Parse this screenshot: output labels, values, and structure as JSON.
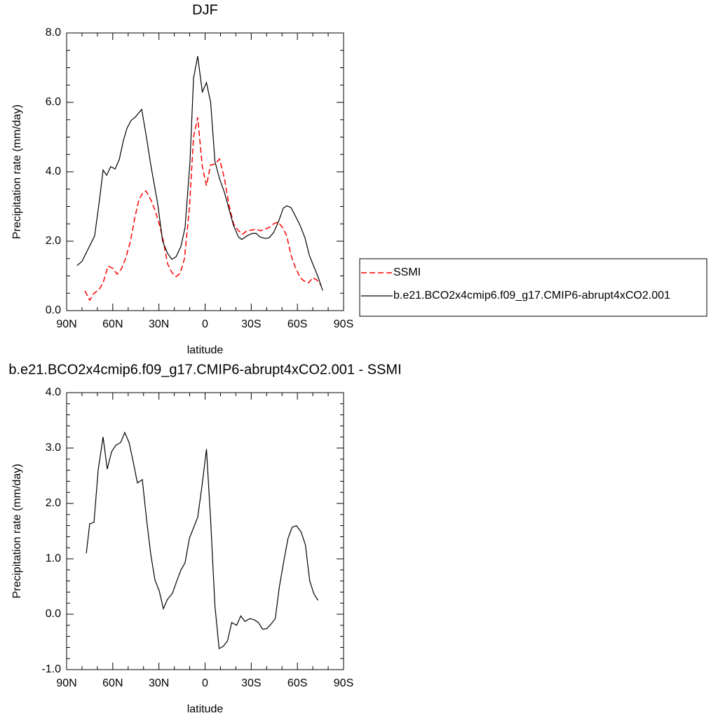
{
  "chart_data": [
    {
      "type": "line",
      "title": "DJF",
      "xlabel": "latitude",
      "ylabel": "Precipitation rate (mm/day)",
      "xlim": [
        90,
        -90
      ],
      "ylim": [
        0,
        8
      ],
      "xticks": [
        {
          "value": 90,
          "label": "90N"
        },
        {
          "value": 60,
          "label": "60N"
        },
        {
          "value": 30,
          "label": "30N"
        },
        0,
        {
          "value": -30,
          "label": "30S"
        },
        {
          "value": -60,
          "label": "60S"
        },
        {
          "value": -90,
          "label": "90S"
        }
      ],
      "yticks": [
        {
          "value": 0,
          "label": "0.0"
        },
        {
          "value": 2,
          "label": "2.0"
        },
        {
          "value": 4,
          "label": "4.0"
        },
        {
          "value": 6,
          "label": "6.0"
        },
        {
          "value": 8,
          "label": "8.0"
        }
      ],
      "legend": "right",
      "series": [
        {
          "name": "SSMI",
          "color": "#ff0000",
          "dash": true,
          "x": [
            78.1,
            75,
            72.2,
            69,
            66.3,
            63.1,
            59.9,
            57.2,
            54.4,
            51.7,
            48.5,
            45.8,
            43,
            40.3,
            38.5,
            35.3,
            32.6,
            29.8,
            27.1,
            24.4,
            21.6,
            18.9,
            16.2,
            13.4,
            10.2,
            7.5,
            4.8,
            1.8,
            -0.9,
            -3.6,
            -6.4,
            -9.4,
            -12.6,
            -15.7,
            -18.5,
            -21.7,
            -24.4,
            -27.1,
            -30.3,
            -33.1,
            -36.3,
            -39,
            -41.7,
            -44.5,
            -47.2,
            -50.4,
            -53.1,
            -55.8,
            -58.6,
            -61.8,
            -64.5,
            -67.3,
            -70,
            -72.7,
            -75.4
          ],
          "values": [
            0.57,
            0.3,
            0.5,
            0.6,
            0.8,
            1.28,
            1.22,
            1.05,
            1.2,
            1.5,
            2.0,
            2.65,
            3.2,
            3.4,
            3.45,
            3.2,
            2.9,
            2.5,
            2.0,
            1.35,
            1.1,
            0.98,
            1.07,
            1.5,
            2.95,
            5.0,
            5.57,
            4.15,
            3.6,
            4.2,
            4.22,
            4.37,
            3.8,
            3.0,
            2.5,
            2.3,
            2.2,
            2.3,
            2.32,
            2.35,
            2.3,
            2.35,
            2.4,
            2.5,
            2.55,
            2.4,
            2.15,
            1.6,
            1.25,
            0.95,
            0.85,
            0.8,
            0.95,
            0.88,
            0.73
          ]
        },
        {
          "name": "b.e21.BCO2x4cmip6.f09_g17.CMIP6-abrupt4xCO2.001",
          "color": "#000000",
          "dash": false,
          "x": [
            83.2,
            80,
            76.3,
            71.8,
            68.6,
            66.3,
            64,
            61.3,
            58.5,
            55.8,
            53.1,
            50.8,
            48.1,
            45.3,
            41.2,
            38.5,
            35.3,
            30.7,
            27.6,
            24.4,
            21.6,
            18.9,
            15.7,
            13,
            9.8,
            7.5,
            4.8,
            1.8,
            -0.9,
            -3.6,
            -6.4,
            -9.4,
            -12.6,
            -15.7,
            -18.5,
            -21.7,
            -23.9,
            -27.1,
            -30.3,
            -33.1,
            -35.8,
            -39,
            -41.7,
            -44.5,
            -47.6,
            -50.8,
            -53.1,
            -55.8,
            -59,
            -61.8,
            -64.9,
            -67.7,
            -70.4,
            -73.2,
            -76.4
          ],
          "values": [
            1.3,
            1.42,
            1.75,
            2.15,
            3.2,
            4.05,
            3.9,
            4.15,
            4.08,
            4.35,
            4.9,
            5.25,
            5.48,
            5.58,
            5.8,
            5.1,
            4.2,
            3.05,
            2.0,
            1.65,
            1.48,
            1.55,
            1.85,
            2.4,
            4.3,
            6.7,
            7.33,
            6.3,
            6.57,
            6.0,
            4.3,
            3.8,
            3.4,
            2.9,
            2.45,
            2.12,
            2.05,
            2.15,
            2.22,
            2.23,
            2.12,
            2.08,
            2.1,
            2.25,
            2.55,
            2.95,
            3.02,
            2.97,
            2.7,
            2.45,
            2.1,
            1.6,
            1.3,
            1.0,
            0.58
          ]
        }
      ]
    },
    {
      "type": "line",
      "title": "b.e21.BCO2x4cmip6.f09_g17.CMIP6-abrupt4xCO2.001 - SSMI",
      "xlabel": "latitude",
      "ylabel": "Precipitation rate (mm/day)",
      "xlim": [
        90,
        -90
      ],
      "ylim": [
        -1,
        4
      ],
      "xticks": [
        {
          "value": 90,
          "label": "90N"
        },
        {
          "value": 60,
          "label": "60N"
        },
        {
          "value": 30,
          "label": "30N"
        },
        0,
        {
          "value": -30,
          "label": "30S"
        },
        {
          "value": -60,
          "label": "60S"
        },
        {
          "value": -90,
          "label": "90S"
        }
      ],
      "yticks": [
        {
          "value": -1,
          "label": "-1.0"
        },
        {
          "value": 0,
          "label": "0.0"
        },
        {
          "value": 1,
          "label": "1.0"
        },
        {
          "value": 2,
          "label": "2.0"
        },
        {
          "value": 3,
          "label": "3.0"
        },
        {
          "value": 4,
          "label": "4.0"
        }
      ],
      "series": [
        {
          "color": "#000000",
          "dash": false,
          "x": [
            77.2,
            75,
            72.2,
            69.5,
            66.3,
            63.6,
            60.8,
            58.1,
            54.9,
            52.2,
            49.4,
            46.7,
            44,
            40.8,
            38,
            35.3,
            32.6,
            29.8,
            27.1,
            24.4,
            21.2,
            18.4,
            15.7,
            13,
            10.2,
            7.5,
            4.8,
            2.1,
            -0.9,
            -3.6,
            -6.4,
            -9.1,
            -11.8,
            -14.6,
            -17.3,
            -20.5,
            -23.2,
            -25.9,
            -29.1,
            -31.9,
            -34.6,
            -37.4,
            -40.1,
            -42.8,
            -45.6,
            -48.3,
            -51.1,
            -53.9,
            -56.6,
            -59.3,
            -62.5,
            -65.2,
            -68,
            -70.7,
            -73.4
          ],
          "values": [
            1.1,
            1.63,
            1.66,
            2.6,
            3.2,
            2.62,
            2.93,
            3.05,
            3.1,
            3.28,
            3.1,
            2.75,
            2.37,
            2.43,
            1.7,
            1.08,
            0.62,
            0.42,
            0.1,
            0.27,
            0.38,
            0.6,
            0.8,
            0.93,
            1.37,
            1.56,
            1.75,
            2.3,
            2.98,
            1.7,
            0.15,
            -0.62,
            -0.58,
            -0.48,
            -0.15,
            -0.2,
            -0.03,
            -0.13,
            -0.08,
            -0.1,
            -0.15,
            -0.27,
            -0.26,
            -0.18,
            -0.08,
            0.5,
            0.95,
            1.37,
            1.57,
            1.6,
            1.48,
            1.25,
            0.6,
            0.37,
            0.25
          ]
        }
      ]
    }
  ]
}
